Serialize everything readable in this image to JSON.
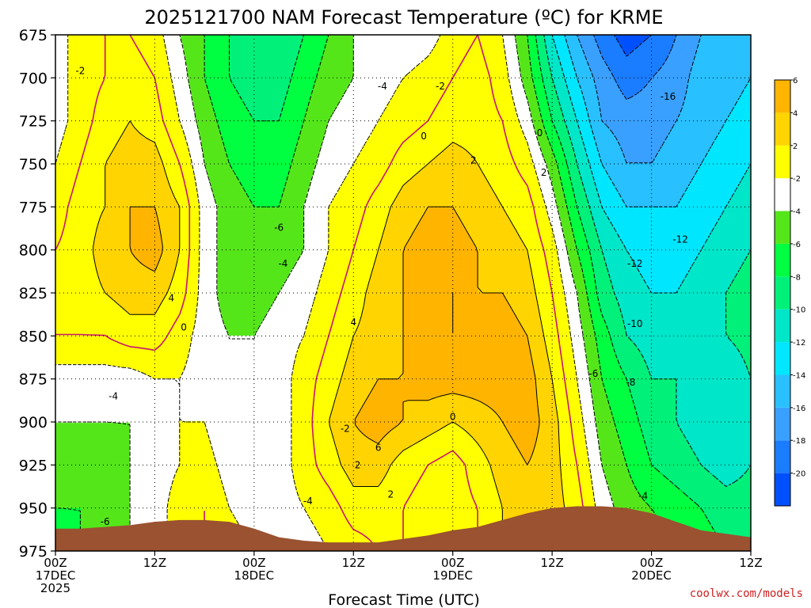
{
  "title": "2025121700 NAM Forecast Temperature (ºC) for KRME",
  "xlabel": "Forecast Time (UTC)",
  "credit": "coolwx.com/models",
  "chart_data": {
    "type": "contour",
    "title": "2025121700 NAM Forecast Temperature (ºC) for KRME",
    "xlabel": "Forecast Time (UTC)",
    "ylabel": "",
    "y_ticks": [
      675,
      700,
      725,
      750,
      775,
      800,
      825,
      850,
      875,
      900,
      925,
      950,
      975
    ],
    "ylim": [
      675,
      975
    ],
    "xlim_hours": [
      0,
      84
    ],
    "x_ticks": [
      {
        "h": 0,
        "lines": [
          "00Z",
          "17DEC",
          "2025"
        ]
      },
      {
        "h": 12,
        "lines": [
          "12Z"
        ]
      },
      {
        "h": 24,
        "lines": [
          "00Z",
          "18DEC"
        ]
      },
      {
        "h": 36,
        "lines": [
          "12Z"
        ]
      },
      {
        "h": 48,
        "lines": [
          "00Z",
          "19DEC"
        ]
      },
      {
        "h": 60,
        "lines": [
          "12Z"
        ]
      },
      {
        "h": 72,
        "lines": [
          "00Z",
          "20DEC"
        ]
      },
      {
        "h": 84,
        "lines": [
          "12Z"
        ]
      }
    ],
    "colorbar": {
      "bounds": [
        -22,
        -20,
        -18,
        -16,
        -14,
        -12,
        -10,
        -8,
        -6,
        -4,
        -2,
        2,
        4,
        6,
        8
      ],
      "labels": [
        "-20",
        "-18",
        "-16",
        "-14",
        "-12",
        "-10",
        "-8",
        "-6",
        "-4",
        "-2",
        "2",
        "4",
        "6"
      ],
      "colors": [
        "#0050ff",
        "#1a7cff",
        "#3aa0ff",
        "#28c0ff",
        "#00e6ff",
        "#00e6c8",
        "#00f07a",
        "#00ff40",
        "#55e61a",
        "#ffffff",
        "#ffff00",
        "#ffd400",
        "#ffb400"
      ]
    },
    "hours": [
      0,
      3,
      6,
      9,
      12,
      15,
      18,
      21,
      24,
      27,
      30,
      33,
      36,
      39,
      42,
      45,
      48,
      51,
      54,
      57,
      60,
      63,
      66,
      69,
      72,
      75,
      78,
      81,
      84
    ],
    "levels": [
      675,
      700,
      725,
      750,
      775,
      800,
      825,
      850,
      875,
      900,
      925,
      950,
      975
    ],
    "temperature": [
      [
        -3,
        -1,
        0,
        0,
        -1,
        -4,
        -6,
        -8,
        -9,
        -10,
        -8,
        -6,
        -4,
        -4,
        -4,
        -3,
        -1,
        0,
        -2,
        -6,
        -12,
        -16,
        -19,
        -21,
        -20,
        -18,
        -16,
        -16,
        -14
      ],
      [
        -3,
        -1,
        0,
        1,
        0,
        -3,
        -6,
        -8,
        -9,
        -9,
        -7,
        -5,
        -4,
        -3,
        -2,
        -1,
        0,
        1,
        -1,
        -5,
        -10,
        -14,
        -17,
        -19,
        -18,
        -17,
        -15,
        -15,
        -14
      ],
      [
        -3,
        -1,
        1,
        2,
        1,
        -2,
        -5,
        -7,
        -8,
        -8,
        -6,
        -4,
        -3,
        -2,
        -1,
        0,
        1,
        1,
        0,
        -3,
        -8,
        -12,
        -16,
        -17,
        -17,
        -16,
        -15,
        -14,
        -13
      ],
      [
        -2,
        0,
        2,
        3,
        3,
        0,
        -4,
        -6,
        -7,
        -7,
        -5,
        -3,
        -2,
        -1,
        1,
        2,
        3,
        2,
        1,
        -1,
        -5,
        -10,
        -14,
        -16,
        -16,
        -15,
        -14,
        -13,
        -12
      ],
      [
        -1,
        1,
        2,
        4,
        4,
        2,
        -3,
        -5,
        -6,
        -6,
        -4,
        -2,
        -1,
        1,
        3,
        4,
        4,
        3,
        2,
        1,
        -3,
        -8,
        -12,
        -14,
        -14,
        -14,
        -13,
        -12,
        -11
      ],
      [
        0,
        1,
        3,
        4,
        5,
        2,
        -3,
        -5,
        -6,
        -5,
        -4,
        -2,
        0,
        2,
        4,
        5,
        5,
        4,
        3,
        2,
        -1,
        -6,
        -10,
        -12,
        -13,
        -13,
        -12,
        -11,
        -10
      ],
      [
        1,
        1,
        2,
        3,
        3,
        1,
        -3,
        -5,
        -5,
        -4,
        -3,
        -1,
        1,
        3,
        4,
        5,
        6,
        4,
        4,
        3,
        0,
        -4,
        -9,
        -11,
        -12,
        -12,
        -11,
        -10,
        -9
      ],
      [
        0,
        0,
        0,
        1,
        1,
        -1,
        -3,
        -4,
        -4,
        -3,
        -2,
        0,
        2,
        3,
        4,
        5,
        6,
        5,
        5,
        4,
        1,
        -3,
        -7,
        -10,
        -11,
        -11,
        -10,
        -10,
        -9
      ],
      [
        -3,
        -3,
        -3,
        -3,
        -2,
        -2,
        -3,
        -4,
        -4,
        -3,
        -1,
        1,
        3,
        4,
        4,
        5,
        5,
        5,
        5,
        5,
        2,
        -2,
        -6,
        -8,
        -10,
        -10,
        -11,
        -12,
        -10
      ],
      [
        -4,
        -4,
        -4,
        -4,
        -3,
        -2,
        -2,
        -4,
        -4,
        -3,
        -1,
        2,
        4,
        5,
        4,
        3,
        2,
        3,
        4,
        5,
        3,
        -1,
        -5,
        -7,
        -9,
        -10,
        -11,
        -12,
        -11
      ],
      [
        -5,
        -5,
        -5,
        -4,
        -3,
        -2,
        -1,
        -3,
        -4,
        -3,
        -1,
        1,
        3,
        3,
        1,
        0,
        -1,
        1,
        3,
        4,
        3,
        0,
        -4,
        -6,
        -8,
        -9,
        -10,
        -11,
        -10
      ],
      [
        -6,
        -6,
        -5,
        -4,
        -3,
        -1,
        0,
        -2,
        -3,
        -3,
        -2,
        -1,
        1,
        1,
        0,
        -1,
        -1,
        0,
        2,
        3,
        3,
        1,
        -3,
        -5,
        -6,
        -7,
        -8,
        -9,
        -9
      ],
      [
        -7,
        -6,
        -5,
        -4,
        -3,
        -1,
        0,
        -1,
        -2,
        -3,
        -3,
        -2,
        -1,
        0,
        0,
        -1,
        -1,
        0,
        2,
        3,
        3,
        2,
        -2,
        -4,
        -5,
        -6,
        -7,
        -8,
        -8
      ]
    ],
    "terrain_pressure": [
      962,
      962,
      961,
      960,
      958,
      957,
      957,
      958,
      962,
      967,
      969,
      970,
      970,
      970,
      968,
      966,
      963,
      961,
      957,
      953,
      950,
      949,
      949,
      950,
      953,
      958,
      963,
      965,
      967
    ],
    "contour_labels": [
      {
        "h": 3,
        "p": 696,
        "text": "-2"
      },
      {
        "h": 14,
        "p": 828,
        "text": "4"
      },
      {
        "h": 15.5,
        "p": 845,
        "text": "0"
      },
      {
        "h": 7,
        "p": 885,
        "text": "-4"
      },
      {
        "h": 6,
        "p": 958,
        "text": "-6"
      },
      {
        "h": 27,
        "p": 787,
        "text": "-6"
      },
      {
        "h": 27.5,
        "p": 808,
        "text": "-4"
      },
      {
        "h": 35,
        "p": 904,
        "text": "-2"
      },
      {
        "h": 30.5,
        "p": 946,
        "text": "-4"
      },
      {
        "h": 39.5,
        "p": 705,
        "text": "-4"
      },
      {
        "h": 46.5,
        "p": 705,
        "text": "-2"
      },
      {
        "h": 44.5,
        "p": 734,
        "text": "0"
      },
      {
        "h": 50.5,
        "p": 748,
        "text": "2"
      },
      {
        "h": 36,
        "p": 842,
        "text": "4"
      },
      {
        "h": 39,
        "p": 915,
        "text": "6"
      },
      {
        "h": 48,
        "p": 897,
        "text": "0"
      },
      {
        "h": 40.5,
        "p": 942,
        "text": "2"
      },
      {
        "h": 36.5,
        "p": 925,
        "text": "2"
      },
      {
        "h": 58.5,
        "p": 732,
        "text": "0"
      },
      {
        "h": 59,
        "p": 755,
        "text": "2"
      },
      {
        "h": 74,
        "p": 711,
        "text": "-16"
      },
      {
        "h": 75.5,
        "p": 794,
        "text": "-12"
      },
      {
        "h": 70,
        "p": 808,
        "text": "-12"
      },
      {
        "h": 70,
        "p": 843,
        "text": "-10"
      },
      {
        "h": 65,
        "p": 872,
        "text": "-6"
      },
      {
        "h": 69.5,
        "p": 877,
        "text": "-8"
      },
      {
        "h": 71,
        "p": 943,
        "text": "-4"
      }
    ]
  }
}
